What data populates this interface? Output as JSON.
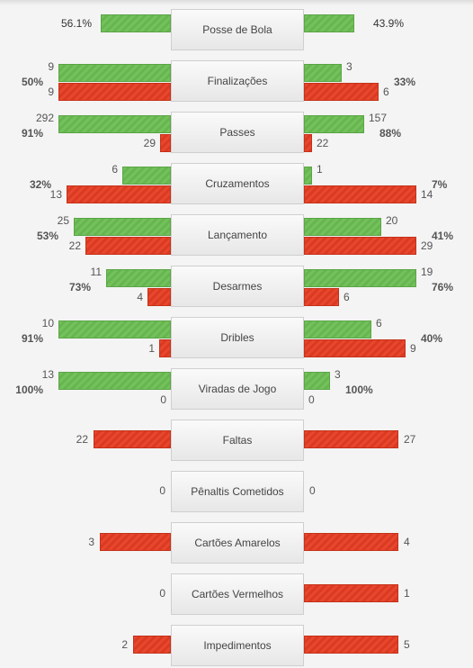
{
  "chart_data": {
    "type": "bar",
    "title": "",
    "series": [
      {
        "role": "success",
        "color": "#6cbb55"
      },
      {
        "role": "failure",
        "color": "#e2412a"
      }
    ],
    "categories": [
      {
        "label": "Posse de Bola",
        "kind": "possession",
        "left": {
          "value": 56.1,
          "text": "56.1%"
        },
        "right": {
          "value": 43.9,
          "text": "43.9%"
        }
      },
      {
        "label": "Finalizações",
        "kind": "pair",
        "left": {
          "green": 9,
          "red": 9,
          "pct": "50%"
        },
        "right": {
          "green": 3,
          "red": 6,
          "pct": "33%"
        }
      },
      {
        "label": "Passes",
        "kind": "pair",
        "left": {
          "green": 292,
          "red": 29,
          "pct": "91%"
        },
        "right": {
          "green": 157,
          "red": 22,
          "pct": "88%"
        }
      },
      {
        "label": "Cruzamentos",
        "kind": "pair",
        "left": {
          "green": 6,
          "red": 13,
          "pct": "32%"
        },
        "right": {
          "green": 1,
          "red": 14,
          "pct": "7%"
        }
      },
      {
        "label": "Lançamento",
        "kind": "pair",
        "left": {
          "green": 25,
          "red": 22,
          "pct": "53%"
        },
        "right": {
          "green": 20,
          "red": 29,
          "pct": "41%"
        }
      },
      {
        "label": "Desarmes",
        "kind": "pair",
        "left": {
          "green": 11,
          "red": 4,
          "pct": "73%"
        },
        "right": {
          "green": 19,
          "red": 6,
          "pct": "76%"
        }
      },
      {
        "label": "Dribles",
        "kind": "pair",
        "left": {
          "green": 10,
          "red": 1,
          "pct": "91%"
        },
        "right": {
          "green": 6,
          "red": 9,
          "pct": "40%"
        }
      },
      {
        "label": "Viradas de Jogo",
        "kind": "pair",
        "left": {
          "green": 13,
          "red": 0,
          "pct": "100%"
        },
        "right": {
          "green": 3,
          "red": 0,
          "pct": "100%"
        }
      },
      {
        "label": "Faltas",
        "kind": "single",
        "left": {
          "red": 22
        },
        "right": {
          "red": 27
        }
      },
      {
        "label": "Pênaltis Cometidos",
        "kind": "single",
        "left": {
          "red": 0
        },
        "right": {
          "red": 0
        }
      },
      {
        "label": "Cartões Amarelos",
        "kind": "single",
        "left": {
          "red": 3
        },
        "right": {
          "red": 4
        }
      },
      {
        "label": "Cartões Vermelhos",
        "kind": "single",
        "left": {
          "red": 0
        },
        "right": {
          "red": 1
        }
      },
      {
        "label": "Impedimentos",
        "kind": "single",
        "left": {
          "red": 2
        },
        "right": {
          "red": 5
        }
      }
    ]
  }
}
